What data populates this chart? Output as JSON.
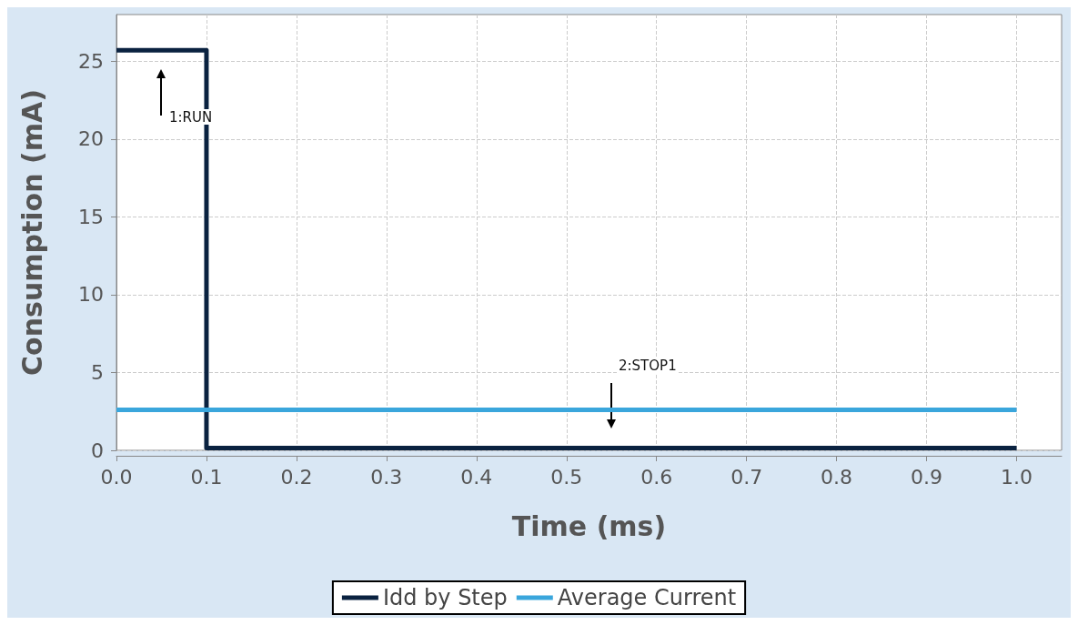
{
  "chart_data": {
    "type": "line",
    "xlabel": "Time (ms)",
    "ylabel": "Consumption (mA)",
    "xlim": [
      0,
      1.05
    ],
    "xticks": [
      {
        "value": 0,
        "label": "0.0"
      },
      {
        "value": 0.1,
        "label": "0.1"
      },
      {
        "value": 0.2,
        "label": "0.2"
      },
      {
        "value": 0.3,
        "label": "0.3"
      },
      {
        "value": 0.4,
        "label": "0.4"
      },
      {
        "value": 0.5,
        "label": "0.5"
      },
      {
        "value": 0.6,
        "label": "0.6"
      },
      {
        "value": 0.7,
        "label": "0.7"
      },
      {
        "value": 0.8,
        "label": "0.8"
      },
      {
        "value": 0.9,
        "label": "0.9"
      },
      {
        "value": 1,
        "label": "1.0"
      }
    ],
    "ylim": [
      0,
      28
    ],
    "yticks": [
      0,
      5,
      10,
      15,
      20,
      25
    ],
    "series": [
      {
        "name": "Idd by Step",
        "type": "step",
        "color": "#0a2240",
        "x": [
          0,
          0.1,
          1
        ],
        "values": [
          25.7,
          0.15,
          0.15
        ]
      },
      {
        "name": "Average Current",
        "color": "#3aa6dc",
        "x": [
          0,
          1
        ],
        "values": [
          2.6,
          2.6
        ]
      }
    ],
    "annotations": [
      "1:RUN",
      "2:STOP1"
    ],
    "grid": true,
    "legend": "bottom",
    "marker": "none",
    "line_style": "solid"
  }
}
